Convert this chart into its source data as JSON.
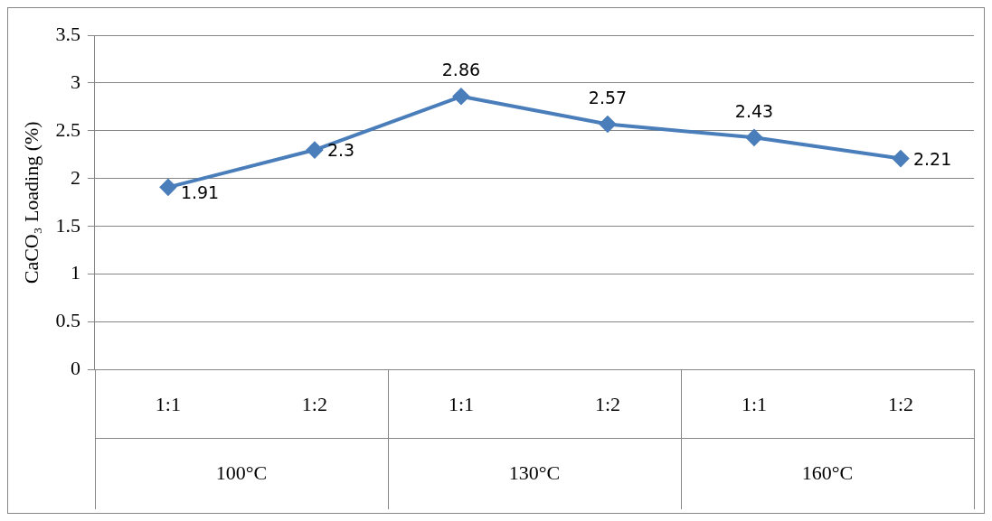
{
  "chart_data": {
    "type": "line",
    "ylabel": "CaCO₃ Loading (%)",
    "categories": [
      "1:1",
      "1:2",
      "1:1",
      "1:2",
      "1:1",
      "1:2"
    ],
    "annotations": [
      "100°C",
      "130°C",
      "160°C"
    ],
    "series": [
      {
        "color": "#4a7ebb",
        "values": [
          1.91,
          2.3,
          2.86,
          2.57,
          2.43,
          2.21
        ]
      }
    ],
    "ylim": [
      0,
      3.5
    ],
    "yticks": [
      0,
      0.5,
      1,
      1.5,
      2,
      2.5,
      3,
      3.5
    ],
    "grid": "y",
    "legend": false,
    "marker": "diamond",
    "line_style": "solid",
    "data_labels": true
  }
}
